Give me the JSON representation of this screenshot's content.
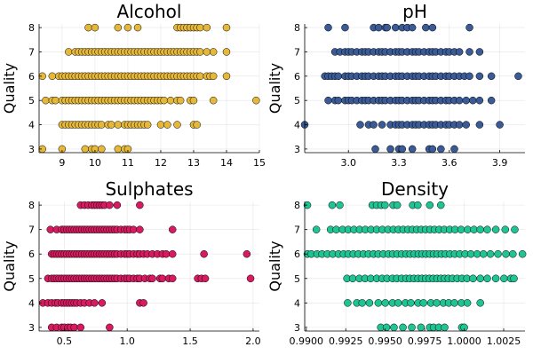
{
  "chart_data": [
    {
      "type": "scatter",
      "title": "Alcohol",
      "ylabel": "Quality",
      "color": "#e6b83a",
      "xlim": [
        8.3,
        15.0
      ],
      "ylim": [
        2.85,
        8.15
      ],
      "xticks": [
        9,
        10,
        11,
        12,
        13,
        14,
        15
      ],
      "xtick_labels": [
        "9",
        "10",
        "11",
        "12",
        "13",
        "14",
        "15"
      ],
      "yticks": [
        3,
        4,
        5,
        6,
        7,
        8
      ],
      "ytick_labels": [
        "3",
        "4",
        "5",
        "6",
        "7",
        "8"
      ],
      "grid": true,
      "series": [
        {
          "y": 3,
          "x": [
            8.4,
            9.0,
            9.7,
            9.9,
            10.0,
            10.2,
            10.7,
            10.9,
            11.0
          ]
        },
        {
          "y": 4,
          "x": [
            9.0,
            9.1,
            9.2,
            9.3,
            9.4,
            9.5,
            9.6,
            9.7,
            9.8,
            9.9,
            10.0,
            10.1,
            10.2,
            10.4,
            10.5,
            10.7,
            10.9,
            11.0,
            11.1,
            11.2,
            11.3,
            11.4,
            11.5,
            11.6,
            12.0,
            12.2,
            12.5,
            13.0,
            13.1
          ]
        },
        {
          "y": 5,
          "x": [
            8.5,
            8.7,
            8.8,
            9.0,
            9.1,
            9.2,
            9.3,
            9.4,
            9.5,
            9.6,
            9.7,
            9.8,
            9.9,
            10.0,
            10.1,
            10.2,
            10.3,
            10.4,
            10.5,
            10.6,
            10.7,
            10.8,
            10.9,
            11.0,
            11.1,
            11.2,
            11.3,
            11.4,
            11.5,
            11.6,
            11.7,
            11.8,
            11.9,
            12.0,
            12.1,
            12.3,
            12.5,
            12.6,
            12.9,
            13.0,
            13.6,
            14.9
          ]
        },
        {
          "y": 6,
          "x": [
            8.4,
            8.7,
            8.9,
            9.0,
            9.1,
            9.2,
            9.3,
            9.4,
            9.5,
            9.6,
            9.7,
            9.8,
            9.9,
            10.0,
            10.1,
            10.2,
            10.3,
            10.4,
            10.5,
            10.6,
            10.7,
            10.8,
            10.9,
            11.0,
            11.1,
            11.2,
            11.3,
            11.4,
            11.5,
            11.6,
            11.7,
            11.8,
            11.9,
            12.0,
            12.1,
            12.2,
            12.3,
            12.4,
            12.5,
            12.6,
            12.7,
            12.8,
            12.9,
            13.0,
            13.1,
            13.2,
            13.4,
            13.5,
            13.6,
            14.0
          ]
        },
        {
          "y": 7,
          "x": [
            9.2,
            9.4,
            9.5,
            9.6,
            9.7,
            9.8,
            9.9,
            10.0,
            10.1,
            10.2,
            10.3,
            10.4,
            10.5,
            10.6,
            10.7,
            10.8,
            10.9,
            11.0,
            11.1,
            11.2,
            11.3,
            11.4,
            11.5,
            11.6,
            11.7,
            11.8,
            11.9,
            12.0,
            12.1,
            12.2,
            12.3,
            12.4,
            12.5,
            12.6,
            12.7,
            12.8,
            12.9,
            13.0,
            13.1,
            13.2,
            13.4,
            13.6,
            14.0
          ]
        },
        {
          "y": 8,
          "x": [
            9.8,
            10.0,
            10.7,
            11.0,
            11.3,
            12.5,
            12.6,
            12.7,
            12.8,
            12.9,
            13.0,
            13.1,
            13.2,
            13.4,
            14.0
          ]
        }
      ]
    },
    {
      "type": "scatter",
      "title": "pH",
      "ylabel": "Quality",
      "color": "#3a5b96",
      "xlim": [
        2.74,
        4.05
      ],
      "ylim": [
        2.85,
        8.15
      ],
      "xticks": [
        3.0,
        3.3,
        3.6,
        3.9
      ],
      "xtick_labels": [
        "3.0",
        "3.3",
        "3.6",
        "3.9"
      ],
      "yticks": [
        3,
        4,
        5,
        6,
        7,
        8
      ],
      "ytick_labels": [
        "3",
        "4",
        "5",
        "6",
        "7",
        "8"
      ],
      "grid": true,
      "series": [
        {
          "y": 3,
          "x": [
            3.16,
            3.25,
            3.3,
            3.32,
            3.38,
            3.48,
            3.5,
            3.55,
            3.63
          ]
        },
        {
          "y": 4,
          "x": [
            2.74,
            3.07,
            3.12,
            3.15,
            3.2,
            3.25,
            3.28,
            3.3,
            3.32,
            3.35,
            3.38,
            3.4,
            3.42,
            3.45,
            3.48,
            3.5,
            3.52,
            3.55,
            3.58,
            3.6,
            3.63,
            3.66,
            3.7,
            3.78,
            3.9
          ]
        },
        {
          "y": 5,
          "x": [
            2.88,
            2.92,
            2.94,
            2.98,
            3.0,
            3.02,
            3.05,
            3.08,
            3.1,
            3.12,
            3.15,
            3.18,
            3.2,
            3.22,
            3.25,
            3.28,
            3.3,
            3.32,
            3.35,
            3.38,
            3.4,
            3.42,
            3.45,
            3.48,
            3.5,
            3.52,
            3.55,
            3.58,
            3.6,
            3.63,
            3.66,
            3.7,
            3.74,
            3.78,
            3.85
          ]
        },
        {
          "y": 6,
          "x": [
            2.86,
            2.88,
            2.9,
            2.92,
            2.94,
            2.98,
            3.0,
            3.02,
            3.05,
            3.08,
            3.1,
            3.12,
            3.15,
            3.18,
            3.2,
            3.22,
            3.25,
            3.28,
            3.3,
            3.32,
            3.35,
            3.38,
            3.4,
            3.42,
            3.45,
            3.48,
            3.5,
            3.52,
            3.55,
            3.58,
            3.6,
            3.63,
            3.66,
            3.69,
            3.72,
            3.78,
            3.85,
            4.01
          ]
        },
        {
          "y": 7,
          "x": [
            2.92,
            2.95,
            2.98,
            3.0,
            3.02,
            3.05,
            3.08,
            3.1,
            3.12,
            3.15,
            3.18,
            3.2,
            3.22,
            3.25,
            3.28,
            3.3,
            3.32,
            3.35,
            3.38,
            3.4,
            3.42,
            3.45,
            3.48,
            3.5,
            3.52,
            3.55,
            3.58,
            3.6,
            3.63,
            3.66,
            3.72,
            3.78
          ]
        },
        {
          "y": 8,
          "x": [
            2.88,
            2.98,
            3.15,
            3.18,
            3.22,
            3.23,
            3.28,
            3.32,
            3.35,
            3.38,
            3.46,
            3.5,
            3.72
          ]
        }
      ]
    },
    {
      "type": "scatter",
      "title": "Sulphates",
      "ylabel": "Quality",
      "color": "#d81b60",
      "xlim": [
        0.3,
        2.05
      ],
      "ylim": [
        2.85,
        8.15
      ],
      "xticks": [
        0.5,
        1.0,
        1.5,
        2.0
      ],
      "xtick_labels": [
        "0.5",
        "1.0",
        "1.5",
        "2.0"
      ],
      "yticks": [
        3,
        4,
        5,
        6,
        7,
        8
      ],
      "ytick_labels": [
        "3",
        "4",
        "5",
        "6",
        "7",
        "8"
      ],
      "grid": true,
      "series": [
        {
          "y": 3,
          "x": [
            0.4,
            0.44,
            0.48,
            0.5,
            0.53,
            0.55,
            0.58,
            0.63,
            0.86
          ]
        },
        {
          "y": 4,
          "x": [
            0.33,
            0.37,
            0.4,
            0.43,
            0.45,
            0.48,
            0.5,
            0.52,
            0.54,
            0.56,
            0.58,
            0.6,
            0.63,
            0.66,
            0.7,
            0.74,
            0.8,
            1.1,
            1.13
          ]
        },
        {
          "y": 5,
          "x": [
            0.37,
            0.4,
            0.42,
            0.44,
            0.46,
            0.48,
            0.5,
            0.52,
            0.54,
            0.56,
            0.58,
            0.6,
            0.62,
            0.64,
            0.66,
            0.68,
            0.7,
            0.72,
            0.74,
            0.76,
            0.78,
            0.8,
            0.82,
            0.84,
            0.86,
            0.88,
            0.9,
            0.92,
            0.95,
            0.98,
            1.0,
            1.02,
            1.05,
            1.08,
            1.1,
            1.14,
            1.18,
            1.2,
            1.26,
            1.28,
            1.33,
            1.36,
            1.56,
            1.59,
            1.62,
            1.98
          ]
        },
        {
          "y": 6,
          "x": [
            0.4,
            0.42,
            0.44,
            0.46,
            0.48,
            0.5,
            0.52,
            0.54,
            0.56,
            0.58,
            0.6,
            0.62,
            0.64,
            0.66,
            0.68,
            0.7,
            0.72,
            0.74,
            0.76,
            0.78,
            0.8,
            0.82,
            0.84,
            0.86,
            0.88,
            0.9,
            0.92,
            0.95,
            0.98,
            1.0,
            1.02,
            1.05,
            1.08,
            1.1,
            1.13,
            1.16,
            1.2,
            1.24,
            1.28,
            1.31,
            1.36,
            1.61,
            1.95
          ]
        },
        {
          "y": 7,
          "x": [
            0.39,
            0.44,
            0.48,
            0.5,
            0.52,
            0.54,
            0.56,
            0.58,
            0.6,
            0.62,
            0.64,
            0.66,
            0.68,
            0.7,
            0.72,
            0.74,
            0.76,
            0.78,
            0.8,
            0.82,
            0.84,
            0.86,
            0.88,
            0.9,
            0.92,
            0.95,
            0.98,
            1.0,
            1.02,
            1.05,
            1.1,
            1.36
          ]
        },
        {
          "y": 8,
          "x": [
            0.63,
            0.66,
            0.69,
            0.72,
            0.74,
            0.76,
            0.78,
            0.8,
            0.82,
            0.86,
            0.92,
            1.1
          ]
        }
      ]
    },
    {
      "type": "scatter",
      "title": "Density",
      "ylabel": "Quality",
      "color": "#1fc493",
      "xlim": [
        0.9899,
        1.00385
      ],
      "ylim": [
        2.85,
        8.15
      ],
      "xticks": [
        0.99,
        0.9925,
        0.995,
        0.9975,
        1.0,
        1.0025
      ],
      "xtick_labels": [
        "0.9900",
        "0.9925",
        "0.9950",
        "0.9975",
        "1.0000",
        "1.0025"
      ],
      "yticks": [
        3,
        4,
        5,
        6,
        7,
        8
      ],
      "ytick_labels": [
        "3",
        "4",
        "5",
        "6",
        "7",
        "8"
      ],
      "grid": true,
      "series": [
        {
          "y": 3,
          "x": [
            0.99472,
            0.99508,
            0.99555,
            0.99612,
            0.99668,
            0.99726,
            0.99782,
            0.99806,
            0.99839,
            0.99876,
            0.99985,
            1.0
          ]
        },
        {
          "y": 4,
          "x": [
            0.99262,
            0.9932,
            0.99354,
            0.994,
            0.99456,
            0.995,
            0.99546,
            0.99582,
            0.99628,
            0.99662,
            0.99708,
            0.99742,
            0.99789,
            0.99826,
            0.99868,
            0.99902,
            0.99938,
            0.99982,
            1.0002,
            1.00102
          ]
        },
        {
          "y": 5,
          "x": [
            0.99258,
            0.99294,
            0.99336,
            0.99372,
            0.99408,
            0.99446,
            0.9948,
            0.99512,
            0.99546,
            0.99574,
            0.99604,
            0.99632,
            0.99656,
            0.99682,
            0.99708,
            0.99732,
            0.99756,
            0.9978,
            0.99804,
            0.99828,
            0.99852,
            0.99876,
            0.999,
            0.99926,
            0.99956,
            0.99986,
            1.00018,
            1.00056,
            1.00102,
            1.00146,
            1.002,
            1.00252,
            1.00295,
            1.00315
          ]
        },
        {
          "y": 6,
          "x": [
            0.99007,
            0.99032,
            0.99068,
            0.991,
            0.99134,
            0.99168,
            0.99204,
            0.99236,
            0.99266,
            0.99298,
            0.9933,
            0.99362,
            0.99394,
            0.99426,
            0.99456,
            0.99488,
            0.9952,
            0.99548,
            0.99576,
            0.99604,
            0.99632,
            0.99658,
            0.99684,
            0.9971,
            0.99734,
            0.99758,
            0.99782,
            0.99806,
            0.9983,
            0.99856,
            0.99882,
            0.9991,
            0.9994,
            0.99972,
            1.00006,
            1.00042,
            1.00082,
            1.00122,
            1.00166,
            1.00214,
            1.00264,
            1.00308,
            1.00369
          ]
        },
        {
          "y": 7,
          "x": [
            0.99064,
            0.99154,
            0.9919,
            0.9923,
            0.99266,
            0.99302,
            0.99338,
            0.99374,
            0.9941,
            0.99446,
            0.99482,
            0.99518,
            0.99552,
            0.99584,
            0.99614,
            0.99644,
            0.99672,
            0.997,
            0.99728,
            0.99756,
            0.99784,
            0.99812,
            0.99842,
            0.99874,
            0.99908,
            0.99942,
            0.9998,
            1.00022,
            1.00062,
            1.00102,
            1.00146,
            1.002,
            1.0026,
            1.0032
          ]
        },
        {
          "y": 8,
          "x": [
            0.99007,
            0.99164,
            0.99212,
            0.99418,
            0.99446,
            0.99474,
            0.99498,
            0.9955,
            0.99576,
            0.99674,
            0.99706,
            0.99782,
            0.99852
          ]
        }
      ]
    }
  ]
}
